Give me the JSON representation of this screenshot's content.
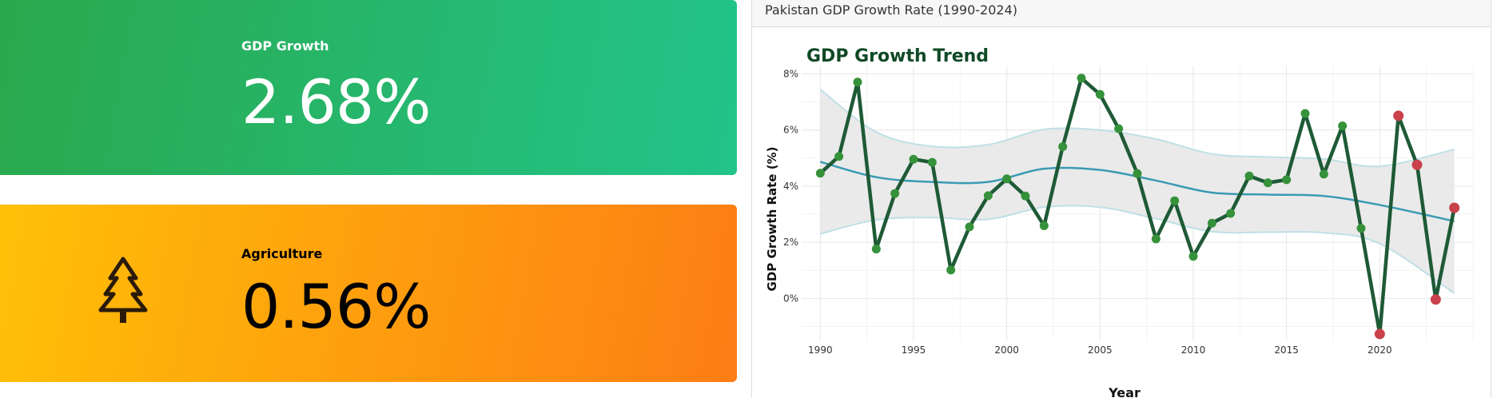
{
  "cards": {
    "gdp": {
      "label": "GDP Growth",
      "value": "2.68%"
    },
    "agriculture": {
      "label": "Agriculture",
      "value": "0.56%",
      "icon": "tree-icon"
    }
  },
  "panel": {
    "title": "Pakistan GDP Growth Rate (1990-2024)"
  },
  "colors": {
    "line": "#1e5a36",
    "point_positive": "#36923a",
    "point_negative": "#c9414a",
    "trend": "#3a9bb4",
    "band_fill": "#e8e8e8",
    "band_edge": "#bfe0e6",
    "title": "#0f4a26"
  },
  "chart_data": {
    "type": "line",
    "title": "GDP Growth Trend",
    "xlabel": "Year",
    "ylabel": "GDP Growth Rate (%)",
    "xlim": [
      1989,
      2025
    ],
    "ylim": [
      -1.5,
      8.3
    ],
    "x_ticks": [
      1990,
      1995,
      2000,
      2005,
      2010,
      2015,
      2020
    ],
    "y_ticks": [
      0,
      2,
      4,
      6,
      8
    ],
    "y_tick_labels": [
      "0%",
      "2%",
      "4%",
      "6%",
      "8%"
    ],
    "grid": true,
    "series": [
      {
        "x": [
          1990,
          1991,
          1992,
          1993,
          1994,
          1995,
          1996,
          1997,
          1998,
          1999,
          2000,
          2001,
          2002,
          2003,
          2004,
          2005,
          2006,
          2007,
          2008,
          2009,
          2010,
          2011,
          2012,
          2013,
          2014,
          2015,
          2016,
          2017,
          2018,
          2019,
          2020,
          2021,
          2022,
          2023,
          2024
        ],
        "values": [
          4.46,
          5.06,
          7.71,
          1.76,
          3.74,
          4.96,
          4.85,
          1.01,
          2.55,
          3.66,
          4.26,
          3.65,
          2.59,
          5.41,
          7.85,
          7.27,
          6.05,
          4.45,
          2.12,
          3.48,
          1.5,
          2.68,
          3.03,
          4.36,
          4.12,
          4.23,
          6.59,
          4.43,
          6.15,
          2.5,
          -1.27,
          6.51,
          4.76,
          -0.04,
          3.23
        ],
        "highlight_negative_from": 2020
      }
    ],
    "trend": {
      "x": [
        1990,
        1993,
        1996,
        1999,
        2002,
        2005,
        2008,
        2011,
        2014,
        2017,
        2020,
        2024
      ],
      "y": [
        4.87,
        4.32,
        4.15,
        4.15,
        4.62,
        4.58,
        4.2,
        3.77,
        3.7,
        3.65,
        3.33,
        2.75
      ],
      "upper": [
        7.45,
        5.93,
        5.42,
        5.48,
        6.02,
        6.0,
        5.68,
        5.15,
        5.04,
        4.97,
        4.71,
        5.31
      ],
      "lower": [
        2.3,
        2.8,
        2.88,
        2.82,
        3.25,
        3.25,
        2.84,
        2.38,
        2.36,
        2.34,
        1.95,
        0.18
      ]
    }
  }
}
